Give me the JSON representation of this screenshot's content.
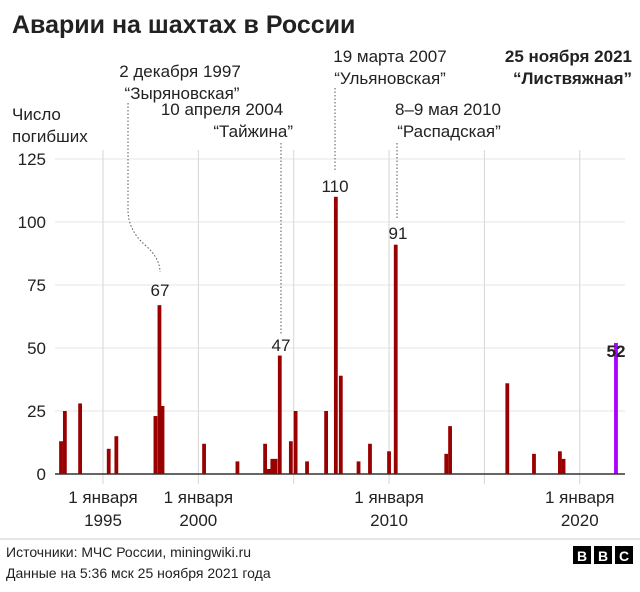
{
  "chart_data": {
    "type": "bar",
    "title": "Аварии на шахтах в России",
    "ylabel": [
      "Число",
      "погибших"
    ],
    "xlabel": "",
    "ylim": [
      0,
      125
    ],
    "xlim": [
      1991.7,
      2022.4
    ],
    "yticks": [
      "0",
      "25",
      "50",
      "75",
      "100",
      "125"
    ],
    "ytick_values": [
      0,
      25,
      50,
      75,
      100,
      125
    ],
    "xticks": [
      {
        "year": 1995,
        "line1": "1 января",
        "line2": "1995"
      },
      {
        "year": 2000,
        "line1": "1 января",
        "line2": "2000"
      },
      {
        "year": 2010,
        "line1": "1 января",
        "line2": "2010"
      },
      {
        "year": 2020,
        "line1": "1 января",
        "line2": "2020"
      }
    ],
    "gridlines_x": [
      1995,
      2000,
      2005,
      2010,
      2015,
      2020
    ],
    "grid": true,
    "colors": {
      "bar": "#990000",
      "highlight": "#aa00ff"
    },
    "points": [
      {
        "x": 1992.8,
        "y": 13
      },
      {
        "x": 1993.0,
        "y": 25
      },
      {
        "x": 1993.8,
        "y": 28
      },
      {
        "x": 1995.3,
        "y": 10
      },
      {
        "x": 1995.7,
        "y": 15
      },
      {
        "x": 1997.75,
        "y": 23
      },
      {
        "x": 1997.96,
        "y": 67
      },
      {
        "x": 1998.12,
        "y": 27
      },
      {
        "x": 2000.3,
        "y": 12
      },
      {
        "x": 2002.05,
        "y": 5
      },
      {
        "x": 2003.5,
        "y": 12
      },
      {
        "x": 2003.7,
        "y": 2
      },
      {
        "x": 2003.88,
        "y": 6
      },
      {
        "x": 2004.05,
        "y": 6
      },
      {
        "x": 2004.27,
        "y": 47
      },
      {
        "x": 2004.85,
        "y": 13
      },
      {
        "x": 2005.1,
        "y": 25
      },
      {
        "x": 2005.7,
        "y": 5
      },
      {
        "x": 2006.7,
        "y": 25
      },
      {
        "x": 2007.21,
        "y": 110
      },
      {
        "x": 2007.47,
        "y": 39
      },
      {
        "x": 2008.4,
        "y": 5
      },
      {
        "x": 2009.0,
        "y": 12
      },
      {
        "x": 2010.0,
        "y": 9
      },
      {
        "x": 2010.35,
        "y": 91
      },
      {
        "x": 2013.0,
        "y": 8
      },
      {
        "x": 2013.2,
        "y": 19
      },
      {
        "x": 2016.2,
        "y": 36
      },
      {
        "x": 2017.6,
        "y": 8
      },
      {
        "x": 2018.96,
        "y": 9
      },
      {
        "x": 2019.15,
        "y": 6
      },
      {
        "x": 2021.9,
        "y": 52,
        "highlight": true
      }
    ],
    "annotations": [
      {
        "date": "2 декабря 1997",
        "name": "“Зыряновская”",
        "value": "67"
      },
      {
        "date": "10 апреля 2004",
        "name": "“Тайжина”",
        "value": "47"
      },
      {
        "date": "19 марта 2007",
        "name": "“Ульяновская”",
        "value": "110"
      },
      {
        "date": "8–9 мая 2010",
        "name": "“Распадская”",
        "value": "91"
      },
      {
        "date": "25 ноября 2021",
        "name": "“Листвяжная”",
        "value": "52"
      }
    ]
  },
  "footer": {
    "source": "Источники: МЧС России, miningwiki.ru",
    "date": "Данные на 5:36 мск 25 ноября 2021 года",
    "logo": "BBC"
  }
}
